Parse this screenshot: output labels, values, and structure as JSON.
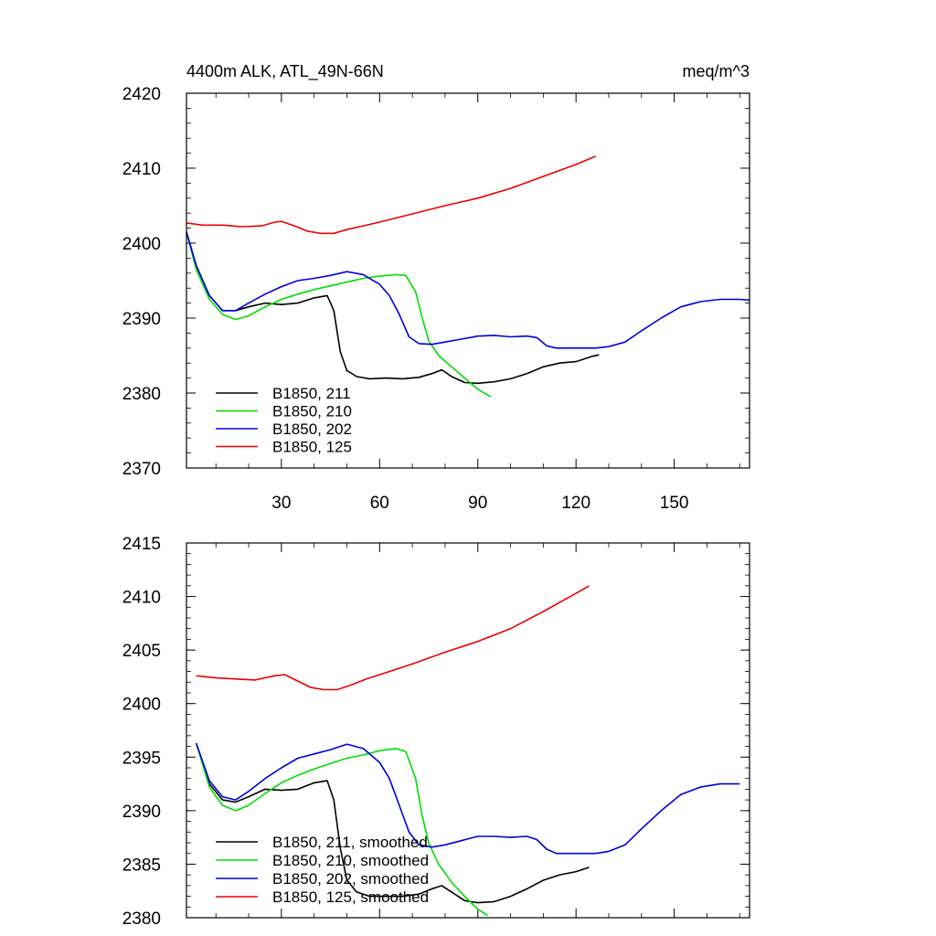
{
  "chart_data": [
    {
      "type": "line",
      "title": "4400m ALK, ATL_49N-66N",
      "units": "meq/m^3",
      "xlim": [
        1,
        173
      ],
      "ylim": [
        2370,
        2420
      ],
      "yticks": [
        2370,
        2380,
        2390,
        2400,
        2410,
        2420
      ],
      "xticks": [
        30,
        60,
        90,
        120,
        150
      ],
      "series": [
        {
          "name": "B1850, 211",
          "color": "#000000",
          "x": [
            1,
            4,
            8,
            12,
            16,
            20,
            25,
            30,
            35,
            40,
            44,
            46,
            48,
            50,
            53,
            57,
            62,
            67,
            72,
            76,
            79,
            82,
            86,
            90,
            95,
            100,
            105,
            110,
            115,
            120,
            125,
            127
          ],
          "y": [
            2401.5,
            2397,
            2393,
            2391,
            2391,
            2391.5,
            2392,
            2391.8,
            2392,
            2392.7,
            2393,
            2391,
            2385.5,
            2383,
            2382.2,
            2381.9,
            2382,
            2381.9,
            2382.1,
            2382.6,
            2383.1,
            2382.2,
            2381.4,
            2381.3,
            2381.5,
            2381.9,
            2382.6,
            2383.5,
            2384,
            2384.2,
            2384.9,
            2385.1
          ]
        },
        {
          "name": "B1850, 210",
          "color": "#00dd00",
          "x": [
            1,
            4,
            8,
            12,
            16,
            20,
            25,
            30,
            35,
            40,
            45,
            50,
            55,
            60,
            65,
            68,
            71,
            73,
            75,
            78,
            82,
            86,
            90,
            94
          ],
          "y": [
            2401.5,
            2396.5,
            2392.5,
            2390.5,
            2389.8,
            2390.3,
            2391.5,
            2392.5,
            2393.2,
            2393.8,
            2394.3,
            2394.8,
            2395.3,
            2395.6,
            2395.8,
            2395.7,
            2393.5,
            2390,
            2387,
            2385,
            2383.5,
            2382,
            2380.5,
            2379.5
          ]
        },
        {
          "name": "B1850, 202",
          "color": "#0000dd",
          "x": [
            1,
            4,
            8,
            12,
            16,
            20,
            25,
            30,
            35,
            40,
            45,
            50,
            55,
            60,
            63,
            66,
            69,
            72,
            76,
            80,
            85,
            90,
            95,
            100,
            105,
            108,
            111,
            114,
            118,
            122,
            126,
            130,
            135,
            140,
            146,
            152,
            158,
            164,
            170,
            173
          ],
          "y": [
            2401.5,
            2397,
            2393,
            2391,
            2391,
            2392,
            2393.2,
            2394.2,
            2395,
            2395.3,
            2395.7,
            2396.2,
            2395.8,
            2394.5,
            2393,
            2390.5,
            2387.5,
            2386.6,
            2386.5,
            2386.8,
            2387.2,
            2387.6,
            2387.7,
            2387.5,
            2387.6,
            2387.4,
            2386.3,
            2386,
            2386,
            2386,
            2386,
            2386.2,
            2386.8,
            2388.3,
            2390,
            2391.5,
            2392.2,
            2392.5,
            2392.5,
            2392.4
          ]
        },
        {
          "name": "B1850, 125",
          "color": "#ee0000",
          "x": [
            1,
            6,
            12,
            18,
            24,
            28,
            30,
            34,
            38,
            42,
            46,
            50,
            55,
            60,
            70,
            80,
            90,
            100,
            110,
            120,
            126
          ],
          "y": [
            2402.7,
            2402.4,
            2402.4,
            2402.2,
            2402.3,
            2402.8,
            2402.9,
            2402.3,
            2401.6,
            2401.3,
            2401.3,
            2401.8,
            2402.3,
            2402.8,
            2403.9,
            2405,
            2406,
            2407.3,
            2408.9,
            2410.5,
            2411.6
          ]
        }
      ],
      "legend": {
        "position": "bottom-left",
        "entries": [
          "B1850, 211",
          "B1850, 210",
          "B1850, 202",
          "B1850, 125"
        ]
      }
    },
    {
      "type": "line",
      "title": "",
      "xlim": [
        1,
        173
      ],
      "ylim": [
        2380,
        2415
      ],
      "yticks": [
        2380,
        2385,
        2390,
        2395,
        2400,
        2405,
        2410,
        2415
      ],
      "xticks": [],
      "series": [
        {
          "name": "B1850, 211, smoothed",
          "color": "#000000",
          "x": [
            4,
            8,
            12,
            16,
            20,
            25,
            30,
            35,
            40,
            44,
            46,
            48,
            50,
            53,
            57,
            62,
            67,
            72,
            76,
            79,
            82,
            86,
            90,
            95,
            100,
            105,
            110,
            115,
            120,
            124
          ],
          "y": [
            2396.3,
            2392.5,
            2391,
            2390.8,
            2391.3,
            2392,
            2391.9,
            2392,
            2392.6,
            2392.8,
            2391,
            2386.5,
            2383.5,
            2382.4,
            2382,
            2382,
            2382,
            2382.2,
            2382.7,
            2383,
            2382.4,
            2381.6,
            2381.4,
            2381.5,
            2382,
            2382.7,
            2383.5,
            2384,
            2384.3,
            2384.7
          ]
        },
        {
          "name": "B1850, 210, smoothed",
          "color": "#00dd00",
          "x": [
            4,
            8,
            12,
            16,
            20,
            25,
            30,
            35,
            40,
            45,
            50,
            55,
            60,
            65,
            68,
            71,
            73,
            75,
            78,
            82,
            86,
            90,
            93
          ],
          "y": [
            2396.3,
            2392.2,
            2390.5,
            2390,
            2390.5,
            2391.6,
            2392.6,
            2393.3,
            2393.9,
            2394.4,
            2394.9,
            2395.2,
            2395.6,
            2395.8,
            2395.5,
            2393,
            2389.5,
            2387,
            2385,
            2383.3,
            2382,
            2380.8,
            2380.2
          ]
        },
        {
          "name": "B1850, 202, smoothed",
          "color": "#0000dd",
          "x": [
            4,
            8,
            12,
            16,
            20,
            25,
            30,
            35,
            40,
            45,
            50,
            55,
            60,
            63,
            66,
            69,
            72,
            76,
            80,
            85,
            90,
            95,
            100,
            105,
            108,
            111,
            114,
            118,
            122,
            126,
            130,
            135,
            140,
            146,
            152,
            158,
            164,
            170
          ],
          "y": [
            2396.3,
            2392.8,
            2391.3,
            2391,
            2391.8,
            2393,
            2394,
            2394.9,
            2395.3,
            2395.7,
            2396.2,
            2395.8,
            2394.5,
            2393,
            2390.5,
            2388,
            2386.8,
            2386.6,
            2386.8,
            2387.2,
            2387.6,
            2387.6,
            2387.5,
            2387.6,
            2387.3,
            2386.4,
            2386,
            2386,
            2386,
            2386,
            2386.2,
            2386.8,
            2388.3,
            2390,
            2391.5,
            2392.2,
            2392.5,
            2392.5
          ]
        },
        {
          "name": "B1850, 125, smoothed",
          "color": "#ee0000",
          "x": [
            4,
            10,
            16,
            22,
            28,
            31,
            35,
            39,
            43,
            47,
            51,
            56,
            62,
            70,
            80,
            90,
            100,
            110,
            120,
            124
          ],
          "y": [
            2402.6,
            2402.4,
            2402.3,
            2402.2,
            2402.6,
            2402.7,
            2402.1,
            2401.5,
            2401.3,
            2401.3,
            2401.7,
            2402.3,
            2402.9,
            2403.7,
            2404.8,
            2405.8,
            2407,
            2408.6,
            2410.3,
            2411
          ]
        }
      ],
      "legend": {
        "position": "bottom-left",
        "entries": [
          "B1850, 211, smoothed",
          "B1850, 210, smoothed",
          "B1850, 202, smoothed",
          "B1850, 125, smoothed"
        ]
      }
    }
  ]
}
